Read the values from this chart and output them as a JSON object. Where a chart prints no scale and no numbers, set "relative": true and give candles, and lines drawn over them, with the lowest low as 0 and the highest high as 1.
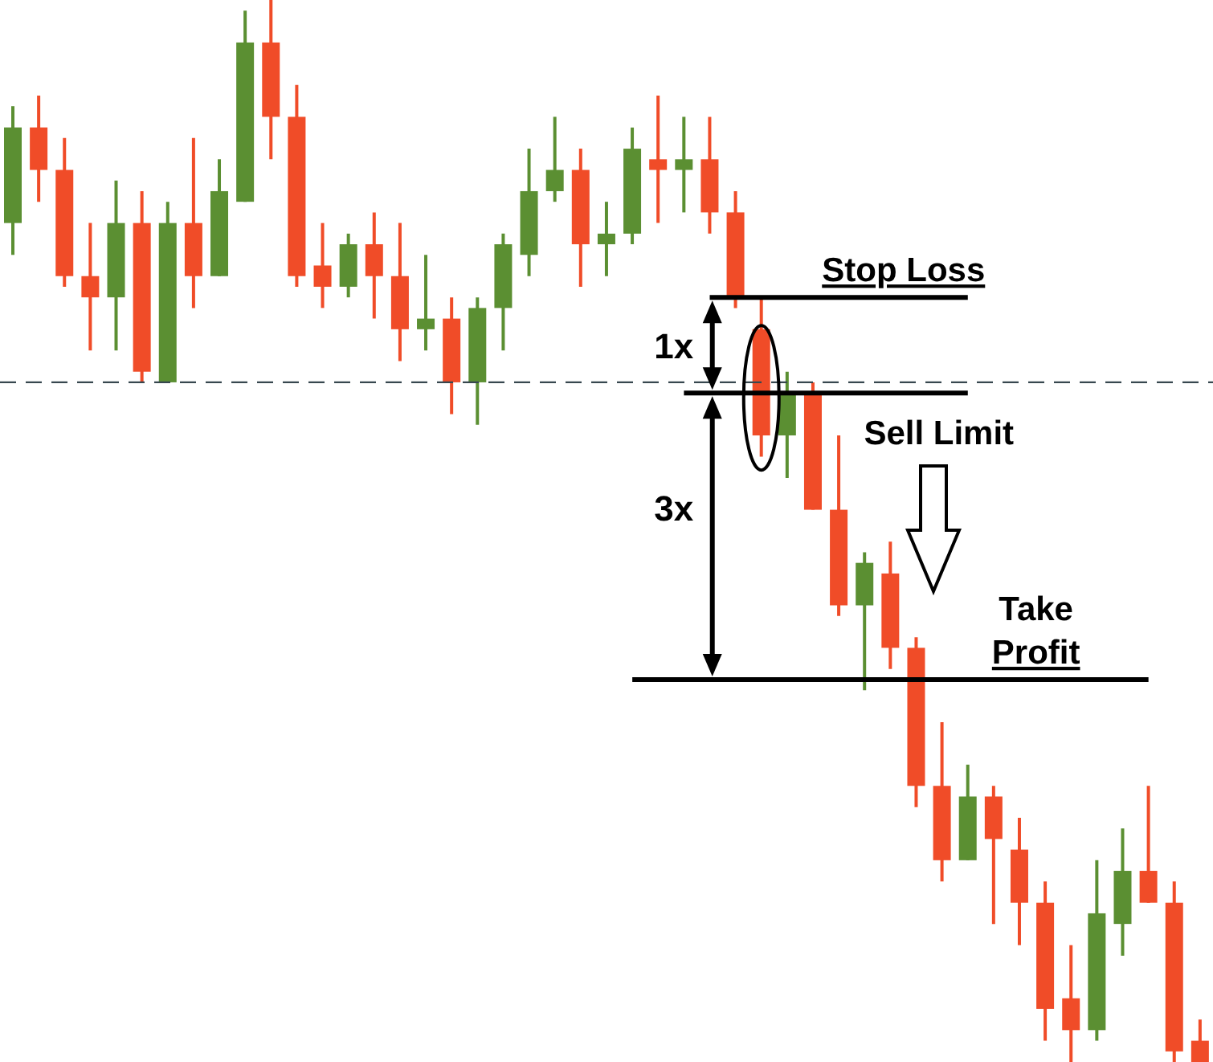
{
  "chart_data": {
    "type": "candlestick",
    "relative": true,
    "tick_labels": false,
    "grid": false,
    "legend": false,
    "categories": [
      null,
      null,
      null,
      null,
      null,
      null,
      null,
      null,
      null,
      null,
      null,
      null,
      null,
      null,
      null,
      null,
      null,
      null,
      null,
      null,
      null,
      null,
      null,
      null,
      null,
      null,
      null,
      null,
      null,
      null,
      null,
      null,
      null,
      null,
      null,
      null,
      null,
      null,
      null,
      null,
      null,
      null,
      null,
      null,
      null,
      null,
      null
    ],
    "ohlc": [
      [
        0.79,
        0.9,
        0.76,
        0.88
      ],
      [
        0.88,
        0.91,
        0.81,
        0.84
      ],
      [
        0.84,
        0.87,
        0.73,
        0.74
      ],
      [
        0.74,
        0.79,
        0.67,
        0.72
      ],
      [
        0.72,
        0.83,
        0.67,
        0.79
      ],
      [
        0.79,
        0.82,
        0.64,
        0.65
      ],
      [
        0.64,
        0.81,
        0.64,
        0.79
      ],
      [
        0.79,
        0.87,
        0.71,
        0.74
      ],
      [
        0.74,
        0.85,
        0.74,
        0.82
      ],
      [
        0.81,
        0.99,
        0.81,
        0.96
      ],
      [
        0.96,
        1.0,
        0.85,
        0.89
      ],
      [
        0.89,
        0.92,
        0.73,
        0.74
      ],
      [
        0.75,
        0.79,
        0.71,
        0.73
      ],
      [
        0.73,
        0.78,
        0.72,
        0.77
      ],
      [
        0.77,
        0.8,
        0.7,
        0.74
      ],
      [
        0.74,
        0.79,
        0.66,
        0.69
      ],
      [
        0.69,
        0.76,
        0.67,
        0.7
      ],
      [
        0.7,
        0.72,
        0.61,
        0.64
      ],
      [
        0.64,
        0.72,
        0.6,
        0.71
      ],
      [
        0.71,
        0.78,
        0.67,
        0.77
      ],
      [
        0.76,
        0.86,
        0.74,
        0.82
      ],
      [
        0.82,
        0.89,
        0.81,
        0.84
      ],
      [
        0.84,
        0.86,
        0.73,
        0.77
      ],
      [
        0.77,
        0.81,
        0.74,
        0.78
      ],
      [
        0.78,
        0.88,
        0.77,
        0.86
      ],
      [
        0.85,
        0.91,
        0.79,
        0.84
      ],
      [
        0.84,
        0.89,
        0.8,
        0.85
      ],
      [
        0.85,
        0.89,
        0.78,
        0.8
      ],
      [
        0.8,
        0.82,
        0.71,
        0.72
      ],
      [
        0.69,
        0.72,
        0.57,
        0.59
      ],
      [
        0.59,
        0.65,
        0.55,
        0.63
      ],
      [
        0.63,
        0.64,
        0.52,
        0.52
      ],
      [
        0.52,
        0.59,
        0.42,
        0.43
      ],
      [
        0.43,
        0.48,
        0.35,
        0.47
      ],
      [
        0.46,
        0.49,
        0.37,
        0.39
      ],
      [
        0.39,
        0.4,
        0.24,
        0.26
      ],
      [
        0.26,
        0.32,
        0.17,
        0.19
      ],
      [
        0.19,
        0.28,
        0.19,
        0.25
      ],
      [
        0.25,
        0.26,
        0.13,
        0.21
      ],
      [
        0.2,
        0.23,
        0.11,
        0.15
      ],
      [
        0.15,
        0.17,
        0.02,
        0.05
      ],
      [
        0.06,
        0.11,
        0,
        0.03
      ],
      [
        0.03,
        0.19,
        0.02,
        0.14
      ],
      [
        0.13,
        0.22,
        0.1,
        0.18
      ],
      [
        0.18,
        0.26,
        0.15,
        0.15
      ],
      [
        0.15,
        0.17,
        0,
        0.01
      ],
      [
        0.02,
        0.04,
        0,
        0
      ]
    ],
    "colors": [
      "#5b8f32",
      "#f04c28",
      "#f04c28",
      "#f04c28",
      "#5b8f32",
      "#f04c28",
      "#5b8f32",
      "#f04c28",
      "#5b8f32",
      "#5b8f32",
      "#f04c28",
      "#f04c28",
      "#f04c28",
      "#5b8f32",
      "#f04c28",
      "#f04c28",
      "#5b8f32",
      "#f04c28",
      "#5b8f32",
      "#5b8f32",
      "#5b8f32",
      "#5b8f32",
      "#f04c28",
      "#5b8f32",
      "#5b8f32",
      "#f04c28",
      "#5b8f32",
      "#f04c28",
      "#f04c28",
      "#f04c28",
      "#5b8f32",
      "#f04c28",
      "#f04c28",
      "#5b8f32",
      "#f04c28",
      "#f04c28",
      "#f04c28",
      "#5b8f32",
      "#f04c28",
      "#f04c28",
      "#f04c28",
      "#f04c28",
      "#5b8f32",
      "#5b8f32",
      "#f04c28",
      "#f04c28",
      "#f04c28"
    ],
    "ref_lines": [
      {
        "axis": "y",
        "value": 0.72,
        "label": "Stop Loss",
        "color": "#000000",
        "line_style": "solid"
      },
      {
        "axis": "y",
        "value": 0.63,
        "label": "Sell Limit",
        "color": "#000000",
        "line_style": "solid"
      },
      {
        "axis": "y",
        "value": 0.36,
        "label": "Take Profit",
        "color": "#000000",
        "line_style": "solid"
      },
      {
        "axis": "y",
        "value": 0.64,
        "color": "#37474f",
        "line_style": "dashed"
      }
    ],
    "annotations": [
      "1x",
      "3x"
    ]
  }
}
